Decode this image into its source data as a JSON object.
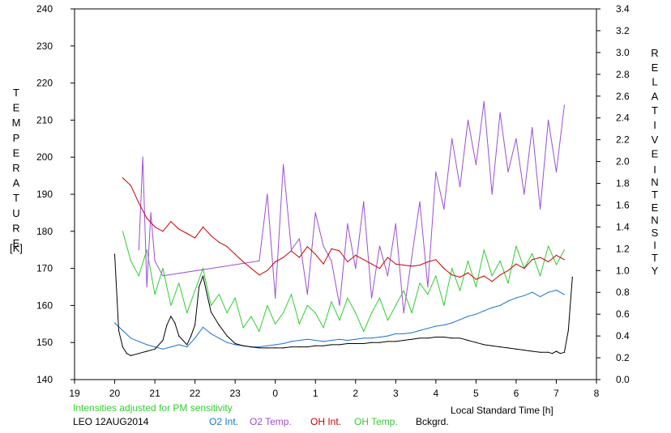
{
  "chart_data": {
    "type": "line",
    "x_axis": {
      "label": "Local Standard Time [h]",
      "ticks": [
        "19",
        "20",
        "21",
        "22",
        "23",
        "0",
        "1",
        "2",
        "3",
        "4",
        "5",
        "6",
        "7",
        "8"
      ]
    },
    "y_left": {
      "label_letters": [
        "T",
        "E",
        "M",
        "P",
        "E",
        "R",
        "A",
        "T",
        "U",
        "R",
        "E"
      ],
      "unit": "[K]",
      "ylim": [
        140,
        240
      ],
      "ticks": [
        "140",
        "150",
        "160",
        "170",
        "180",
        "190",
        "200",
        "210",
        "220",
        "230",
        "240"
      ]
    },
    "y_right": {
      "label_letters": [
        "R",
        "E",
        "L",
        "A",
        "T",
        "I",
        "V",
        "E"
      ],
      "label_letters_2": [
        "I",
        "N",
        "T",
        "E",
        "N",
        "S",
        "I",
        "T",
        "Y"
      ],
      "ylim": [
        0,
        3.4
      ],
      "ticks": [
        "0.0",
        "0.2",
        "0.4",
        "0.6",
        "0.8",
        "1.0",
        "1.2",
        "1.4",
        "1.6",
        "1.8",
        "2.0",
        "2.2",
        "2.4",
        "2.6",
        "2.8",
        "3.0",
        "3.2",
        "3.4"
      ]
    },
    "note": "Intensities adjusted for PM sensitivity",
    "station": "LEO 12AUG2014",
    "grid": false,
    "legend_position": "bottom",
    "colors": {
      "o2_int": "#1874cd",
      "o2_temp": "#9b4fd3",
      "oh_int": "#cc0000",
      "oh_temp": "#33cc33",
      "bckgrd": "#000000"
    },
    "series": [
      {
        "name": "O2 Int.",
        "axis": "right",
        "x": [
          20.0,
          20.2,
          20.4,
          20.6,
          20.8,
          21.0,
          21.2,
          21.4,
          21.6,
          21.8,
          22.0,
          22.2,
          22.4,
          22.6,
          22.8,
          23.0,
          23.2,
          23.4,
          23.6,
          23.8,
          24.0,
          24.2,
          24.4,
          24.6,
          24.8,
          25.0,
          25.2,
          25.4,
          25.6,
          25.8,
          26.0,
          26.2,
          26.4,
          26.6,
          26.8,
          27.0,
          27.2,
          27.4,
          27.6,
          27.8,
          28.0,
          28.2,
          28.4,
          28.6,
          28.8,
          29.0,
          29.2,
          29.4,
          29.6,
          29.8,
          30.0,
          30.2,
          30.4,
          30.6,
          30.8,
          31.0,
          31.2
        ],
        "values": [
          0.52,
          0.45,
          0.38,
          0.35,
          0.32,
          0.3,
          0.28,
          0.3,
          0.32,
          0.3,
          0.38,
          0.48,
          0.42,
          0.38,
          0.34,
          0.32,
          0.31,
          0.3,
          0.3,
          0.31,
          0.32,
          0.33,
          0.35,
          0.36,
          0.37,
          0.36,
          0.35,
          0.36,
          0.37,
          0.36,
          0.37,
          0.38,
          0.38,
          0.39,
          0.4,
          0.42,
          0.42,
          0.43,
          0.45,
          0.47,
          0.49,
          0.5,
          0.52,
          0.55,
          0.58,
          0.6,
          0.63,
          0.66,
          0.68,
          0.72,
          0.75,
          0.77,
          0.8,
          0.76,
          0.8,
          0.82,
          0.78
        ]
      },
      {
        "name": "O2 Temp.",
        "axis": "left",
        "x": [
          20.6,
          20.7,
          20.8,
          20.9,
          21.0,
          21.2,
          23.6,
          23.8,
          24.0,
          24.2,
          24.4,
          24.6,
          24.8,
          25.0,
          25.2,
          25.4,
          25.6,
          25.8,
          26.0,
          26.2,
          26.4,
          26.6,
          26.8,
          27.0,
          27.2,
          27.4,
          27.6,
          27.8,
          28.0,
          28.2,
          28.4,
          28.6,
          28.8,
          29.0,
          29.2,
          29.4,
          29.6,
          29.8,
          30.0,
          30.2,
          30.4,
          30.6,
          30.8,
          31.0,
          31.2
        ],
        "values": [
          175,
          200,
          165,
          185,
          172,
          168,
          172,
          190,
          162,
          198,
          175,
          178,
          163,
          185,
          176,
          172,
          160,
          182,
          170,
          188,
          162,
          176,
          168,
          182,
          158,
          173,
          188,
          165,
          196,
          186,
          205,
          192,
          210,
          198,
          215,
          190,
          212,
          196,
          205,
          190,
          208,
          186,
          210,
          196,
          214
        ]
      },
      {
        "name": "OH Int.",
        "axis": "right",
        "x": [
          20.2,
          20.4,
          20.6,
          20.8,
          21.0,
          21.2,
          21.4,
          21.6,
          21.8,
          22.0,
          22.2,
          22.4,
          22.6,
          22.8,
          23.0,
          23.2,
          23.4,
          23.6,
          23.8,
          24.0,
          24.2,
          24.4,
          24.6,
          24.8,
          25.0,
          25.2,
          25.4,
          25.6,
          25.8,
          26.0,
          26.2,
          26.4,
          26.6,
          26.8,
          27.0,
          27.2,
          27.4,
          27.6,
          27.8,
          28.0,
          28.2,
          28.4,
          28.6,
          28.8,
          29.0,
          29.2,
          29.4,
          29.6,
          29.8,
          30.0,
          30.2,
          30.4,
          30.6,
          30.8,
          31.0,
          31.2
        ],
        "values": [
          1.85,
          1.78,
          1.62,
          1.48,
          1.4,
          1.36,
          1.45,
          1.38,
          1.34,
          1.3,
          1.4,
          1.32,
          1.26,
          1.22,
          1.15,
          1.08,
          1.02,
          0.96,
          1.0,
          1.08,
          1.12,
          1.18,
          1.12,
          1.22,
          1.15,
          1.06,
          1.2,
          1.18,
          1.08,
          1.14,
          1.1,
          1.06,
          1.02,
          1.12,
          1.06,
          1.05,
          1.04,
          1.05,
          1.08,
          1.1,
          1.02,
          0.96,
          0.94,
          0.98,
          0.92,
          0.95,
          0.9,
          0.96,
          1.0,
          1.06,
          1.02,
          1.1,
          1.12,
          1.08,
          1.14,
          1.1
        ]
      },
      {
        "name": "OH Temp.",
        "axis": "left",
        "x": [
          20.2,
          20.4,
          20.6,
          20.8,
          21.0,
          21.2,
          21.4,
          21.6,
          21.8,
          22.0,
          22.2,
          22.4,
          22.6,
          22.8,
          23.0,
          23.2,
          23.4,
          23.6,
          23.8,
          24.0,
          24.2,
          24.4,
          24.6,
          24.8,
          25.0,
          25.2,
          25.4,
          25.6,
          25.8,
          26.0,
          26.2,
          26.4,
          26.6,
          26.8,
          27.0,
          27.2,
          27.4,
          27.6,
          27.8,
          28.0,
          28.2,
          28.4,
          28.6,
          28.8,
          29.0,
          29.2,
          29.4,
          29.6,
          29.8,
          30.0,
          30.2,
          30.4,
          30.6,
          30.8,
          31.0,
          31.2
        ],
        "values": [
          180,
          172,
          168,
          175,
          163,
          170,
          160,
          166,
          158,
          164,
          170,
          160,
          163,
          158,
          162,
          154,
          157,
          153,
          160,
          155,
          158,
          163,
          155,
          160,
          158,
          154,
          161,
          156,
          162,
          158,
          153,
          158,
          162,
          156,
          160,
          164,
          158,
          166,
          163,
          168,
          160,
          170,
          164,
          172,
          165,
          175,
          168,
          172,
          166,
          176,
          170,
          174,
          168,
          176,
          171,
          175
        ]
      },
      {
        "name": "Bckgrd.",
        "axis": "right",
        "x": [
          20.0,
          20.1,
          20.2,
          20.3,
          20.4,
          20.6,
          20.8,
          21.0,
          21.2,
          21.3,
          21.4,
          21.5,
          21.6,
          21.8,
          21.9,
          22.0,
          22.1,
          22.2,
          22.3,
          22.4,
          22.6,
          22.8,
          23.0,
          23.2,
          23.4,
          23.6,
          23.8,
          24.0,
          24.2,
          24.4,
          24.6,
          24.8,
          25.0,
          25.2,
          25.4,
          25.6,
          25.8,
          26.0,
          26.2,
          26.4,
          26.6,
          26.8,
          27.0,
          27.2,
          27.4,
          27.6,
          27.8,
          28.0,
          28.2,
          28.4,
          28.6,
          28.8,
          29.0,
          29.2,
          29.4,
          29.6,
          29.8,
          30.0,
          30.2,
          30.4,
          30.6,
          30.8,
          30.9,
          31.0,
          31.1,
          31.2,
          31.3,
          31.4
        ],
        "values": [
          1.15,
          0.45,
          0.3,
          0.24,
          0.22,
          0.24,
          0.26,
          0.28,
          0.36,
          0.5,
          0.58,
          0.52,
          0.4,
          0.32,
          0.4,
          0.5,
          0.85,
          0.95,
          0.78,
          0.62,
          0.5,
          0.4,
          0.33,
          0.31,
          0.3,
          0.29,
          0.29,
          0.29,
          0.29,
          0.3,
          0.3,
          0.3,
          0.31,
          0.31,
          0.32,
          0.32,
          0.33,
          0.33,
          0.33,
          0.34,
          0.34,
          0.35,
          0.35,
          0.36,
          0.37,
          0.38,
          0.38,
          0.39,
          0.39,
          0.38,
          0.38,
          0.36,
          0.34,
          0.32,
          0.31,
          0.3,
          0.29,
          0.28,
          0.27,
          0.26,
          0.25,
          0.25,
          0.24,
          0.26,
          0.24,
          0.25,
          0.45,
          0.94
        ]
      }
    ]
  }
}
